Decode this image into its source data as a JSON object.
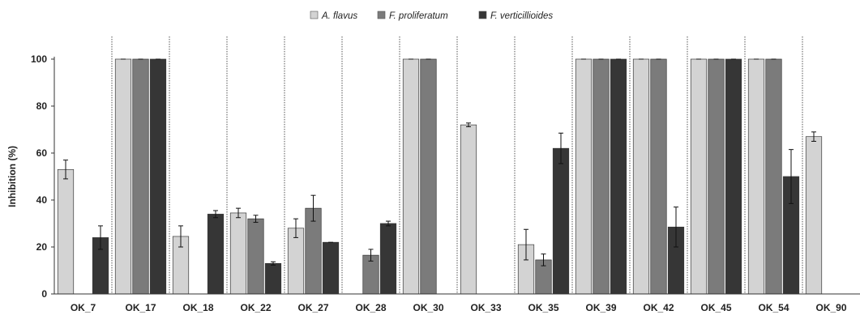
{
  "chart_data": {
    "type": "bar",
    "title": "",
    "xlabel": "",
    "ylabel": "Inhibition (%)",
    "ylim": [
      0,
      100
    ],
    "yticks": [
      0,
      20,
      40,
      60,
      80,
      100
    ],
    "grid": false,
    "legend_position": "top-center",
    "categories": [
      "OK_7",
      "OK_17",
      "OK_18",
      "OK_22",
      "OK_27",
      "OK_28",
      "OK_30",
      "OK_33",
      "OK_35",
      "OK_39",
      "OK_42",
      "OK_45",
      "OK_54",
      "OK_90"
    ],
    "series": [
      {
        "name": "A. flavus",
        "color": "#d3d3d3",
        "values": [
          53,
          100,
          24.5,
          34.5,
          28,
          null,
          100,
          72,
          21,
          100,
          100,
          100,
          100,
          67
        ],
        "errors": [
          4,
          0,
          4.5,
          2,
          4,
          null,
          0,
          0.8,
          6.5,
          0,
          0,
          0,
          0,
          2
        ]
      },
      {
        "name": "F. proliferatum",
        "color": "#7b7b7b",
        "values": [
          null,
          100,
          null,
          32,
          36.5,
          16.5,
          100,
          null,
          14.5,
          100,
          100,
          100,
          100,
          null
        ],
        "errors": [
          null,
          0,
          null,
          1.5,
          5.5,
          2.5,
          0,
          null,
          2.5,
          0,
          0,
          0,
          0,
          null
        ]
      },
      {
        "name": "F. verticillioides",
        "color": "#363636",
        "values": [
          24,
          100,
          34,
          13,
          22,
          30,
          null,
          null,
          62,
          100,
          28.5,
          100,
          50,
          null
        ],
        "errors": [
          5,
          0,
          1.5,
          0.7,
          0,
          1,
          null,
          null,
          6.5,
          0,
          8.5,
          0,
          11.5,
          null
        ]
      }
    ]
  }
}
